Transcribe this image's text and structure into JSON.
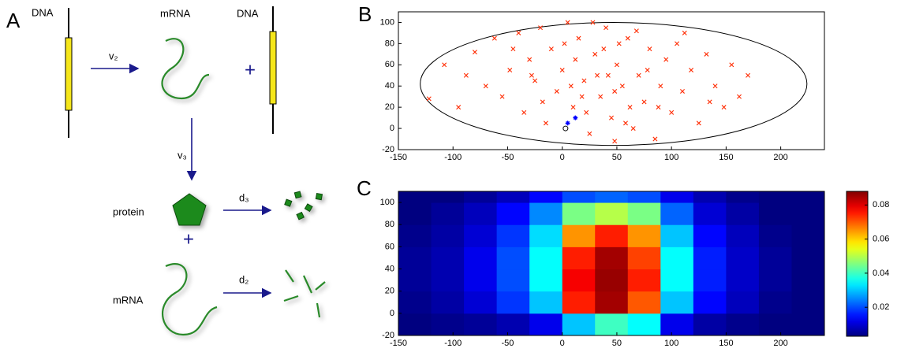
{
  "diagram": {
    "panel_label": "A",
    "dna_left": "DNA",
    "mrna_top": "mRNA",
    "dna_right": "DNA",
    "plus_top": "+",
    "v2": "v₂",
    "v3": "v₃",
    "protein": "protein",
    "plus_bottom": "+",
    "d3": "d₃",
    "mrna_bottom": "mRNA",
    "d2": "d₂"
  },
  "panel_labels": {
    "b": "B",
    "c": "C"
  },
  "chart_data": [
    {
      "type": "scatter",
      "color": "#ff2a00",
      "x": [
        -122,
        -108,
        -88,
        -80,
        -70,
        -62,
        -55,
        -48,
        -40,
        -35,
        -30,
        -25,
        -20,
        -15,
        -10,
        -5,
        0,
        5,
        10,
        15,
        20,
        25,
        30,
        35,
        40,
        45,
        50,
        55,
        60,
        65,
        70,
        75,
        80,
        85,
        90,
        95,
        100,
        105,
        110,
        118,
        125,
        132,
        140,
        148,
        155,
        162,
        170,
        -95,
        -45,
        -18,
        12,
        28,
        48,
        68,
        88,
        112,
        135,
        22,
        42,
        62,
        2,
        -28,
        78,
        38,
        58,
        18,
        32,
        48,
        52,
        8
      ],
      "y": [
        28,
        60,
        50,
        72,
        40,
        85,
        30,
        55,
        90,
        15,
        65,
        45,
        95,
        5,
        75,
        35,
        55,
        100,
        20,
        85,
        45,
        -5,
        70,
        30,
        95,
        10,
        60,
        40,
        85,
        0,
        50,
        25,
        75,
        -10,
        40,
        65,
        15,
        80,
        35,
        55,
        5,
        70,
        40,
        20,
        60,
        30,
        50,
        20,
        75,
        25,
        65,
        100,
        -12,
        92,
        20,
        90,
        25,
        15,
        50,
        20,
        80,
        50,
        55,
        75,
        5,
        30,
        50,
        35,
        80,
        40
      ],
      "highlight": {
        "x": [
          5,
          12
        ],
        "y": [
          5,
          10
        ],
        "color": "#0000ff"
      },
      "start": {
        "x": 3,
        "y": 0
      },
      "ellipse": {
        "cx": 47,
        "cy": 42,
        "rx": 177,
        "ry": 58
      },
      "xlim": [
        -150,
        240
      ],
      "ylim": [
        -20,
        110
      ],
      "xticks": [
        -150,
        -100,
        -50,
        0,
        50,
        100,
        150,
        200
      ],
      "yticks": [
        -20,
        0,
        20,
        40,
        60,
        80,
        100
      ]
    },
    {
      "type": "heatmap",
      "xbins": [
        -150,
        -120,
        -90,
        -60,
        -30,
        0,
        30,
        60,
        90,
        120,
        150,
        180,
        210,
        240
      ],
      "ybins": [
        -20,
        0,
        20,
        40,
        60,
        80,
        100,
        110
      ],
      "z": [
        [
          0.003,
          0.004,
          0.005,
          0.007,
          0.012,
          0.03,
          0.04,
          0.035,
          0.012,
          0.006,
          0.004,
          0.003,
          0.002
        ],
        [
          0.004,
          0.006,
          0.01,
          0.018,
          0.03,
          0.075,
          0.085,
          0.07,
          0.03,
          0.014,
          0.008,
          0.004,
          0.003
        ],
        [
          0.005,
          0.007,
          0.012,
          0.02,
          0.035,
          0.078,
          0.086,
          0.075,
          0.035,
          0.016,
          0.009,
          0.005,
          0.003
        ],
        [
          0.005,
          0.007,
          0.012,
          0.02,
          0.035,
          0.075,
          0.085,
          0.072,
          0.035,
          0.016,
          0.009,
          0.005,
          0.003
        ],
        [
          0.004,
          0.006,
          0.01,
          0.018,
          0.032,
          0.065,
          0.075,
          0.065,
          0.03,
          0.014,
          0.008,
          0.004,
          0.003
        ],
        [
          0.003,
          0.005,
          0.008,
          0.014,
          0.025,
          0.045,
          0.05,
          0.045,
          0.022,
          0.01,
          0.006,
          0.003,
          0.002
        ],
        [
          0.002,
          0.003,
          0.005,
          0.008,
          0.014,
          0.02,
          0.022,
          0.02,
          0.012,
          0.007,
          0.004,
          0.002,
          0.002
        ]
      ],
      "clim": [
        0.003,
        0.088
      ],
      "cticks": [
        0.02,
        0.04,
        0.06,
        0.08
      ],
      "xlim": [
        -150,
        240
      ],
      "ylim": [
        -20,
        110
      ],
      "xticks": [
        -150,
        -100,
        -50,
        0,
        50,
        100,
        150,
        200
      ],
      "yticks": [
        -20,
        0,
        20,
        40,
        60,
        80,
        100
      ]
    }
  ]
}
